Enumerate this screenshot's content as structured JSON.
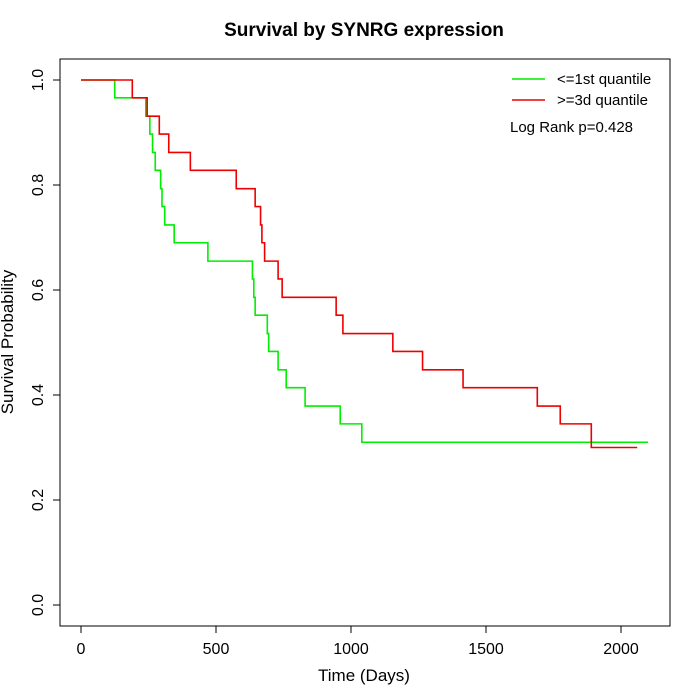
{
  "chart_data": {
    "type": "line",
    "title": "Survival by SYNRG expression",
    "xlabel": "Time (Days)",
    "ylabel": "Survival Probability",
    "xlim": [
      0,
      2100
    ],
    "ylim": [
      0,
      1
    ],
    "x_ticks": [
      0,
      500,
      1000,
      1500,
      2000
    ],
    "x_tick_labels": [
      "0",
      "500",
      "1000",
      "1500",
      "2000"
    ],
    "y_ticks": [
      0,
      0.2,
      0.4,
      0.6,
      0.8,
      1
    ],
    "y_tick_labels": [
      "0.0",
      "0.2",
      "0.4",
      "0.6",
      "0.8",
      "1.0"
    ],
    "grid": false,
    "legend_position": "top-right",
    "annotation": "Log Rank p=0.428",
    "series": [
      {
        "name": "<=1st quantile",
        "color": "#00ee00",
        "step": true,
        "x": [
          0,
          125,
          240,
          255,
          265,
          275,
          295,
          300,
          310,
          320,
          345,
          470,
          635,
          640,
          645,
          655,
          690,
          695,
          700,
          730,
          760,
          790,
          830,
          960,
          1040,
          2100
        ],
        "y": [
          1.0,
          0.966,
          0.931,
          0.897,
          0.862,
          0.828,
          0.793,
          0.759,
          0.724,
          0.724,
          0.69,
          0.655,
          0.621,
          0.586,
          0.552,
          0.552,
          0.517,
          0.483,
          0.483,
          0.448,
          0.414,
          0.414,
          0.379,
          0.345,
          0.31,
          0.31
        ]
      },
      {
        "name": ">=3d quantile",
        "color": "#ee0000",
        "step": true,
        "x": [
          0,
          190,
          245,
          290,
          325,
          405,
          575,
          645,
          665,
          670,
          680,
          730,
          745,
          945,
          970,
          1155,
          1265,
          1415,
          1690,
          1775,
          1890,
          2060
        ],
        "y": [
          1.0,
          0.966,
          0.931,
          0.897,
          0.862,
          0.828,
          0.793,
          0.759,
          0.724,
          0.69,
          0.655,
          0.621,
          0.586,
          0.552,
          0.517,
          0.483,
          0.448,
          0.414,
          0.379,
          0.345,
          0.3,
          0.3
        ]
      }
    ]
  }
}
